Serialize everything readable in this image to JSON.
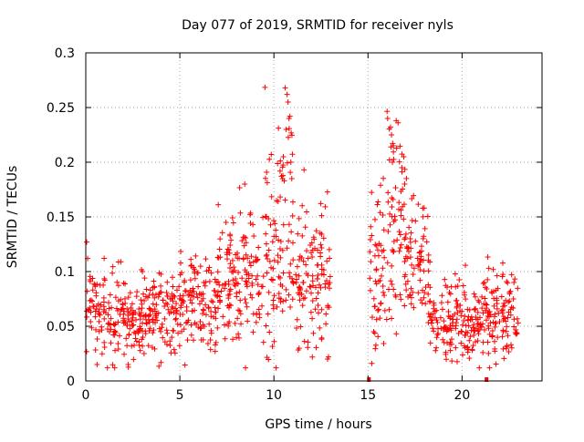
{
  "chart_data": {
    "type": "scatter",
    "title": "Day 077 of 2019, SRMTID for receiver nyls",
    "xlabel": "GPS time / hours",
    "ylabel": "SRMTID / TECUs",
    "xlim": [
      0,
      24.25
    ],
    "ylim": [
      0,
      0.3
    ],
    "x_ticks": [
      0,
      5,
      10,
      15,
      20
    ],
    "x_tick_labels": [
      "0",
      "5",
      "10",
      "15",
      "20"
    ],
    "y_ticks": [
      0,
      0.05,
      0.1,
      0.15,
      0.2,
      0.25,
      0.3
    ],
    "y_tick_labels": [
      "0",
      "0.05",
      "0.1",
      "0.15",
      "0.2",
      "0.25",
      "0.3"
    ],
    "grid": true,
    "marker": "+",
    "color": "#ff0000",
    "profile": [
      {
        "start": 0.0,
        "end": 1.0,
        "mean": 0.062,
        "spread": 0.022,
        "density": 55
      },
      {
        "start": 1.0,
        "end": 3.0,
        "mean": 0.052,
        "spread": 0.018,
        "density": 60
      },
      {
        "start": 3.0,
        "end": 5.0,
        "mean": 0.063,
        "spread": 0.02,
        "density": 60
      },
      {
        "start": 5.0,
        "end": 7.0,
        "mean": 0.068,
        "spread": 0.022,
        "density": 60
      },
      {
        "start": 7.0,
        "end": 9.5,
        "mean": 0.095,
        "spread": 0.028,
        "density": 60
      },
      {
        "start": 9.5,
        "end": 11.0,
        "mean": 0.12,
        "spread": 0.045,
        "density": 65
      },
      {
        "start": 11.0,
        "end": 13.0,
        "mean": 0.095,
        "spread": 0.03,
        "density": 60
      },
      {
        "start": 15.1,
        "end": 16.0,
        "mean": 0.1,
        "spread": 0.035,
        "density": 60
      },
      {
        "start": 16.0,
        "end": 17.0,
        "mean": 0.135,
        "spread": 0.045,
        "density": 65
      },
      {
        "start": 17.0,
        "end": 18.3,
        "mean": 0.11,
        "spread": 0.03,
        "density": 60
      },
      {
        "start": 18.3,
        "end": 21.0,
        "mean": 0.055,
        "spread": 0.018,
        "density": 60
      },
      {
        "start": 21.0,
        "end": 23.0,
        "mean": 0.062,
        "spread": 0.02,
        "density": 60
      }
    ],
    "highlights": [
      {
        "x": 10.6,
        "y": 0.268
      },
      {
        "x": 10.7,
        "y": 0.262
      },
      {
        "x": 10.75,
        "y": 0.255
      },
      {
        "x": 10.8,
        "y": 0.24
      },
      {
        "x": 10.85,
        "y": 0.242
      },
      {
        "x": 10.65,
        "y": 0.23
      },
      {
        "x": 10.5,
        "y": 0.205
      },
      {
        "x": 10.9,
        "y": 0.2
      },
      {
        "x": 10.55,
        "y": 0.183
      },
      {
        "x": 10.95,
        "y": 0.185
      },
      {
        "x": 8.45,
        "y": 0.18
      },
      {
        "x": 11.6,
        "y": 0.193
      },
      {
        "x": 16.5,
        "y": 0.238
      },
      {
        "x": 16.6,
        "y": 0.236
      },
      {
        "x": 16.2,
        "y": 0.232
      },
      {
        "x": 16.25,
        "y": 0.225
      },
      {
        "x": 16.35,
        "y": 0.215
      },
      {
        "x": 16.9,
        "y": 0.205
      },
      {
        "x": 16.3,
        "y": 0.2
      },
      {
        "x": 16.8,
        "y": 0.195
      },
      {
        "x": 16.95,
        "y": 0.18
      },
      {
        "x": 0.05,
        "y": 0.127
      },
      {
        "x": 0.1,
        "y": 0.112
      },
      {
        "x": 2.25,
        "y": 0.015
      },
      {
        "x": 0.6,
        "y": 0.015
      },
      {
        "x": 12.9,
        "y": 0.022
      },
      {
        "x": 12.85,
        "y": 0.02
      },
      {
        "x": 15.2,
        "y": 0.016
      },
      {
        "x": 15.3,
        "y": 0.045
      },
      {
        "x": 3.1,
        "y": 0.025
      }
    ],
    "zero_points": [
      {
        "x": 15.05,
        "y": 0.0
      },
      {
        "x": 21.3,
        "y": 0.0
      }
    ],
    "seed": 77
  }
}
